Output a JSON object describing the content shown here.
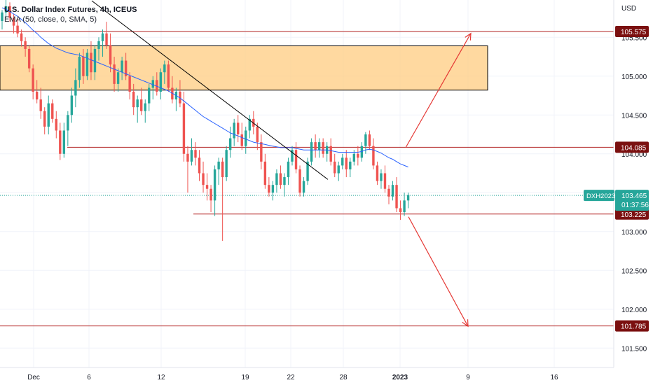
{
  "header": {
    "title": "U.S. Dollar Index Futures, 4h, ICEUS",
    "indicator": "EMA (50, close, 0, SMA, 5)"
  },
  "colors": {
    "up": "#26a69a",
    "down": "#ef5350",
    "ema": "#2962ff",
    "level_line": "#b22222",
    "label_bg": "#7b1010",
    "zone_fill": "#ffcc80",
    "trendline": "#000000",
    "arrow": "#e53935",
    "last_price": "#26a69a"
  },
  "chart_data": {
    "type": "candlestick",
    "currency_label": "USD",
    "y_ticks": [
      "101.500",
      "102.000",
      "102.500",
      "103.000",
      "104.000",
      "104.500",
      "105.000",
      "105.500"
    ],
    "x_ticks": [
      "Dec",
      "6",
      "12",
      "19",
      "22",
      "28",
      "2023",
      "9",
      "16"
    ],
    "ylim": [
      101.25,
      105.98
    ],
    "levels": [
      {
        "label": "105.575",
        "value": 105.575
      },
      {
        "label": "104.085",
        "value": 104.085
      },
      {
        "label": "103.225",
        "value": 103.225
      },
      {
        "label": "101.785",
        "value": 101.785
      }
    ],
    "zone": {
      "high": 105.39,
      "low": 104.82
    },
    "last_price": {
      "symbol": "DXH2023",
      "value": "103.465",
      "countdown": "01:37:56",
      "numeric": 103.465
    },
    "trendline": {
      "start": 105.97,
      "end": 103.67
    },
    "projection_up": {
      "from": 104.08,
      "to": 105.55
    },
    "projection_down": {
      "from": 103.19,
      "to": 101.78
    },
    "candles": [
      [
        105.71,
        105.85,
        105.6,
        105.82
      ],
      [
        105.82,
        105.98,
        105.75,
        105.9
      ],
      [
        105.9,
        105.95,
        105.7,
        105.75
      ],
      [
        105.75,
        105.8,
        105.55,
        105.65
      ],
      [
        105.65,
        105.75,
        105.5,
        105.55
      ],
      [
        105.55,
        105.6,
        105.38,
        105.45
      ],
      [
        105.45,
        105.5,
        105.25,
        105.35
      ],
      [
        105.35,
        105.4,
        105.05,
        105.1
      ],
      [
        105.1,
        105.15,
        104.7,
        104.8
      ],
      [
        104.8,
        104.95,
        104.65,
        104.7
      ],
      [
        104.7,
        104.85,
        104.45,
        104.55
      ],
      [
        104.55,
        104.6,
        104.25,
        104.35
      ],
      [
        104.35,
        104.75,
        104.25,
        104.65
      ],
      [
        104.65,
        104.7,
        104.4,
        104.45
      ],
      [
        104.45,
        104.55,
        104.2,
        104.3
      ],
      [
        104.3,
        104.4,
        103.92,
        104.0
      ],
      [
        104.0,
        104.4,
        103.95,
        104.3
      ],
      [
        104.3,
        104.55,
        104.1,
        104.5
      ],
      [
        104.5,
        104.85,
        104.4,
        104.75
      ],
      [
        104.75,
        105.1,
        104.6,
        104.95
      ],
      [
        104.95,
        105.3,
        104.85,
        105.25
      ],
      [
        105.25,
        105.35,
        104.9,
        105.0
      ],
      [
        105.0,
        105.35,
        104.95,
        105.3
      ],
      [
        105.3,
        105.45,
        104.95,
        105.05
      ],
      [
        105.05,
        105.4,
        104.95,
        105.35
      ],
      [
        105.35,
        105.5,
        105.2,
        105.45
      ],
      [
        105.45,
        105.6,
        105.25,
        105.55
      ],
      [
        105.55,
        105.7,
        105.35,
        105.4
      ],
      [
        105.4,
        105.55,
        105.05,
        105.15
      ],
      [
        105.15,
        105.25,
        104.8,
        104.9
      ],
      [
        104.9,
        105.1,
        104.8,
        105.05
      ],
      [
        105.05,
        105.25,
        104.95,
        105.2
      ],
      [
        105.2,
        105.3,
        104.95,
        105.0
      ],
      [
        105.0,
        105.05,
        104.7,
        104.8
      ],
      [
        104.8,
        104.9,
        104.5,
        104.6
      ],
      [
        104.6,
        104.75,
        104.4,
        104.7
      ],
      [
        104.7,
        104.85,
        104.5,
        104.55
      ],
      [
        104.55,
        104.7,
        104.4,
        104.65
      ],
      [
        104.65,
        104.9,
        104.55,
        104.85
      ],
      [
        104.85,
        105.0,
        104.7,
        104.95
      ],
      [
        104.95,
        105.05,
        104.75,
        104.8
      ],
      [
        104.8,
        105.1,
        104.7,
        105.05
      ],
      [
        105.05,
        105.2,
        104.9,
        105.15
      ],
      [
        105.15,
        105.2,
        104.8,
        104.85
      ],
      [
        104.85,
        105.0,
        104.65,
        104.7
      ],
      [
        104.7,
        104.85,
        104.55,
        104.8
      ],
      [
        104.8,
        104.95,
        104.6,
        104.65
      ],
      [
        104.65,
        104.8,
        103.9,
        104.0
      ],
      [
        104.0,
        104.1,
        103.5,
        103.9
      ],
      [
        103.9,
        104.2,
        103.85,
        104.05
      ],
      [
        104.05,
        104.15,
        103.85,
        103.95
      ],
      [
        103.95,
        104.05,
        103.65,
        103.75
      ],
      [
        103.75,
        103.9,
        103.5,
        103.6
      ],
      [
        103.6,
        103.75,
        103.4,
        103.55
      ],
      [
        103.55,
        103.6,
        103.25,
        103.4
      ],
      [
        103.4,
        103.85,
        103.2,
        103.8
      ],
      [
        103.8,
        103.95,
        103.6,
        103.9
      ],
      [
        103.9,
        103.95,
        102.88,
        103.7
      ],
      [
        103.7,
        104.1,
        103.65,
        104.05
      ],
      [
        104.05,
        104.35,
        103.95,
        104.2
      ],
      [
        104.2,
        104.45,
        104.1,
        104.4
      ],
      [
        104.4,
        104.5,
        104.15,
        104.25
      ],
      [
        104.25,
        104.4,
        104.05,
        104.1
      ],
      [
        104.1,
        104.35,
        104.0,
        104.3
      ],
      [
        104.3,
        104.5,
        104.2,
        104.45
      ],
      [
        104.45,
        104.55,
        104.25,
        104.35
      ],
      [
        104.35,
        104.4,
        104.05,
        104.15
      ],
      [
        104.15,
        104.25,
        103.8,
        103.9
      ],
      [
        103.9,
        104.0,
        103.55,
        103.6
      ],
      [
        103.6,
        103.7,
        103.45,
        103.5
      ],
      [
        103.5,
        103.65,
        103.4,
        103.6
      ],
      [
        103.6,
        103.8,
        103.5,
        103.75
      ],
      [
        103.75,
        103.85,
        103.55,
        103.6
      ],
      [
        103.6,
        103.75,
        103.45,
        103.7
      ],
      [
        103.7,
        103.95,
        103.6,
        103.9
      ],
      [
        103.9,
        104.1,
        103.85,
        104.05
      ],
      [
        104.05,
        104.15,
        103.75,
        103.8
      ],
      [
        103.8,
        103.85,
        103.45,
        103.5
      ],
      [
        103.5,
        103.7,
        103.45,
        103.65
      ],
      [
        103.65,
        103.95,
        103.6,
        103.9
      ],
      [
        103.9,
        104.2,
        103.85,
        104.15
      ],
      [
        104.15,
        104.25,
        103.95,
        104.05
      ],
      [
        104.05,
        104.2,
        103.95,
        104.15
      ],
      [
        104.15,
        104.2,
        103.95,
        104.0
      ],
      [
        104.0,
        104.15,
        103.9,
        104.1
      ],
      [
        104.1,
        104.2,
        103.85,
        103.9
      ],
      [
        103.9,
        104.0,
        103.7,
        103.75
      ],
      [
        103.75,
        103.9,
        103.65,
        103.85
      ],
      [
        103.85,
        104.0,
        103.8,
        103.95
      ],
      [
        103.95,
        104.05,
        103.7,
        103.8
      ],
      [
        103.8,
        103.95,
        103.7,
        103.9
      ],
      [
        103.9,
        104.05,
        103.85,
        104.0
      ],
      [
        104.0,
        104.1,
        103.85,
        103.95
      ],
      [
        103.95,
        104.15,
        103.9,
        104.1
      ],
      [
        104.1,
        104.28,
        104.0,
        104.25
      ],
      [
        104.25,
        104.3,
        104.05,
        104.1
      ],
      [
        104.1,
        104.2,
        103.8,
        103.85
      ],
      [
        103.85,
        103.9,
        103.6,
        103.65
      ],
      [
        103.65,
        103.8,
        103.55,
        103.75
      ],
      [
        103.75,
        103.85,
        103.5,
        103.55
      ],
      [
        103.55,
        103.6,
        103.35,
        103.45
      ],
      [
        103.45,
        103.65,
        103.4,
        103.6
      ],
      [
        103.6,
        103.7,
        103.25,
        103.3
      ],
      [
        103.3,
        103.4,
        103.15,
        103.25
      ],
      [
        103.25,
        103.5,
        103.2,
        103.4
      ],
      [
        103.4,
        103.5,
        103.3,
        103.47
      ]
    ],
    "ema": [
      105.88,
      105.86,
      105.83,
      105.8,
      105.77,
      105.73,
      105.69,
      105.64,
      105.59,
      105.55,
      105.5,
      105.46,
      105.42,
      105.39,
      105.36,
      105.34,
      105.32,
      105.3,
      105.29,
      105.28,
      105.27,
      105.25,
      105.23,
      105.21,
      105.19,
      105.17,
      105.15,
      105.13,
      105.11,
      105.09,
      105.07,
      105.05,
      105.03,
      105.01,
      104.99,
      104.97,
      104.95,
      104.93,
      104.91,
      104.89,
      104.87,
      104.85,
      104.83,
      104.81,
      104.78,
      104.75,
      104.72,
      104.68,
      104.64,
      104.6,
      104.56,
      104.52,
      104.48,
      104.45,
      104.42,
      104.39,
      104.36,
      104.33,
      104.3,
      104.27,
      104.25,
      104.23,
      104.21,
      104.19,
      104.17,
      104.15,
      104.14,
      104.13,
      104.12,
      104.11,
      104.1,
      104.09,
      104.08,
      104.08,
      104.08,
      104.08,
      104.07,
      104.06,
      104.05,
      104.05,
      104.05,
      104.05,
      104.05,
      104.05,
      104.05,
      104.04,
      104.03,
      104.02,
      104.02,
      104.02,
      104.02,
      104.02,
      104.02,
      104.03,
      104.05,
      104.06,
      104.05,
      104.03,
      104.01,
      103.98,
      103.95,
      103.93,
      103.9,
      103.87,
      103.85,
      103.83
    ]
  }
}
